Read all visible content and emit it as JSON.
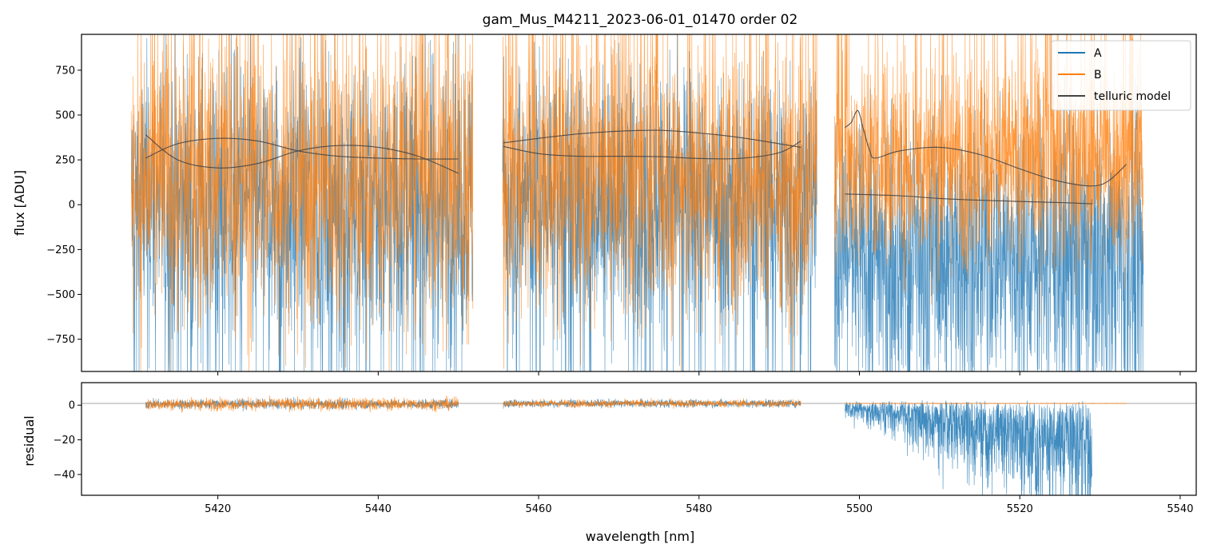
{
  "chart_data": [
    {
      "type": "line",
      "title": "gam_Mus_M4211_2023-06-01_01470  order 02",
      "xlabel": "",
      "ylabel": "flux [ADU]",
      "xlim": [
        5403,
        5542
      ],
      "ylim": [
        -930,
        950
      ],
      "yticks": [
        -750,
        -500,
        -250,
        0,
        250,
        500,
        750
      ],
      "yticklabels": [
        "−750",
        "−500",
        "−250",
        "0",
        "250",
        "500",
        "750"
      ],
      "xticks": [
        5420,
        5440,
        5460,
        5480,
        5500,
        5520,
        5540
      ],
      "legend": {
        "location": "upper right",
        "entries": [
          {
            "label": "A",
            "color": "#1f77b4"
          },
          {
            "label": "B",
            "color": "#ff7f0e"
          },
          {
            "label": "telluric model",
            "color": "#444444"
          }
        ]
      },
      "segments": [
        {
          "x_range": [
            5409.2,
            5451.8
          ],
          "A": {
            "center": 20,
            "spread": 720,
            "min_extreme": -930
          },
          "B": {
            "center": 110,
            "spread": 760,
            "max_extreme": 950
          }
        },
        {
          "x_range": [
            5455.5,
            5494.7
          ],
          "A": {
            "center": 60,
            "spread": 660,
            "min_extreme": -930
          },
          "B": {
            "center": 120,
            "spread": 700,
            "max_extreme": 950
          }
        },
        {
          "x_range": [
            5496.9,
            5535.4
          ],
          "A": {
            "center": -260,
            "spread": 650,
            "min_extreme": -930
          },
          "B": {
            "center": 240,
            "spread": 520,
            "max_extreme": 950
          }
        }
      ],
      "series": [
        {
          "name": "telluric model (seg 1a)",
          "color": "#444444",
          "x": [
            5411,
            5415,
            5420,
            5425,
            5430,
            5435,
            5440,
            5445,
            5450
          ],
          "y": [
            260,
            340,
            370,
            355,
            300,
            270,
            260,
            255,
            255
          ]
        },
        {
          "name": "telluric model (seg 1b)",
          "color": "#444444",
          "x": [
            5411,
            5415,
            5420,
            5425,
            5430,
            5435,
            5440,
            5445,
            5450
          ],
          "y": [
            390,
            250,
            205,
            230,
            300,
            330,
            320,
            270,
            175
          ]
        },
        {
          "name": "telluric model (seg 2a)",
          "color": "#444444",
          "x": [
            5455.6,
            5460,
            5465,
            5470,
            5475,
            5480,
            5485,
            5490,
            5492.7
          ],
          "y": [
            345,
            370,
            395,
            410,
            415,
            400,
            375,
            340,
            320
          ]
        },
        {
          "name": "telluric model (seg 2b)",
          "color": "#444444",
          "x": [
            5455.6,
            5460,
            5465,
            5470,
            5475,
            5480,
            5485,
            5490,
            5492.7
          ],
          "y": [
            325,
            285,
            270,
            270,
            268,
            258,
            258,
            290,
            355
          ]
        },
        {
          "name": "telluric model (seg 3a)",
          "color": "#444444",
          "x": [
            5498.2,
            5499,
            5499.8,
            5500.5,
            5501.3,
            5502,
            5505,
            5510,
            5515,
            5520,
            5525,
            5530,
            5533.3
          ],
          "y": [
            430,
            460,
            525,
            420,
            300,
            260,
            300,
            320,
            280,
            200,
            130,
            110,
            225
          ]
        },
        {
          "name": "telluric model (seg 3b)",
          "color": "#444444",
          "x": [
            5498.2,
            5505,
            5510,
            5515,
            5520,
            5525,
            5529
          ],
          "y": [
            60,
            50,
            35,
            25,
            18,
            12,
            5
          ]
        }
      ]
    },
    {
      "type": "line",
      "title": "",
      "xlabel": "wavelength [nm]",
      "ylabel": "residual",
      "xlim": [
        5403,
        5542
      ],
      "ylim": [
        -52,
        13
      ],
      "yticks": [
        -40,
        -20,
        0
      ],
      "yticklabels": [
        "−40",
        "−20",
        "0"
      ],
      "xticks": [
        5420,
        5440,
        5460,
        5480,
        5500,
        5520,
        5540
      ],
      "xticklabels": [
        "5420",
        "5440",
        "5460",
        "5480",
        "5500",
        "5520",
        "5540"
      ],
      "reference_line": 1,
      "segments": [
        {
          "x_range": [
            5411,
            5450
          ],
          "A": {
            "center": 0.6,
            "spread": 3
          },
          "B": {
            "center": 0.6,
            "spread": 4
          }
        },
        {
          "x_range": [
            5455.6,
            5492.7
          ],
          "A": {
            "center": 1,
            "spread": 2.5
          },
          "B": {
            "center": 1,
            "spread": 2.5
          }
        },
        {
          "x_range": [
            5498.2,
            5529
          ],
          "A": {
            "center": 0,
            "spread_start": 6,
            "spread_end": 60
          },
          "B": {
            "center": 1,
            "spread": 0.2,
            "x_end": 5533.3
          }
        }
      ]
    }
  ]
}
